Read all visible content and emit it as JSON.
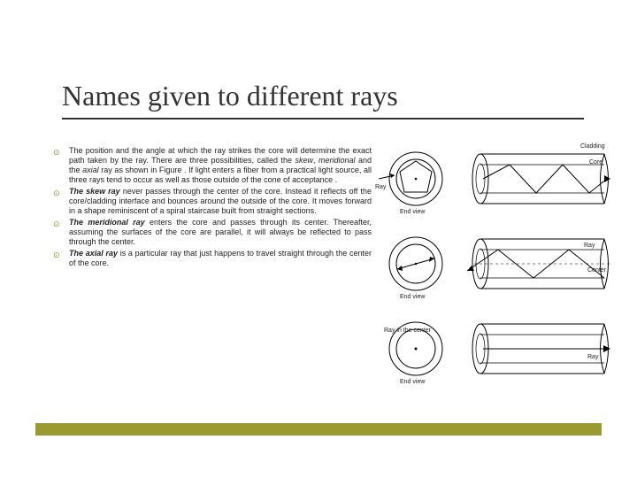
{
  "title": "Names given to different rays",
  "bullets": [
    {
      "html": "The position and the angle at which the ray strikes the core will determine the exact path taken by the ray. There are three possibilities, called the <span class='italic'>skew</span>, <span class='italic'>meridional</span> and the <span class='italic'>axial</span> ray as shown in Figure . If light enters a fiber from a practical light source, all three rays tend to occur as well as those outside of the cone of acceptance ."
    },
    {
      "html": "<span class='bold italic'>The skew ray</span> never passes through the center of the core. Instead it reflects off the core/cladding interface and bounces around the outside of the core. It moves forward in a shape reminiscent of a spiral staircase built from straight sections."
    },
    {
      "html": "<span class='bold italic'>The meridional ray</span> enters the core and passes through its center. Thereafter, assuming the surfaces of the core are parallel, it will always be reflected to pass through the center."
    },
    {
      "html": "<span class='bold italic'>The axial ray</span> is a particular ray that just happens to travel straight through the center of the core."
    }
  ],
  "labels": {
    "ray": "Ray",
    "end_view": "End view",
    "cladding": "Cladding",
    "core": "Core",
    "center": "Center",
    "ray_in_center": "Ray in the center"
  },
  "colors": {
    "accent": "#9a9a33",
    "rule": "#333333",
    "text": "#222222",
    "bullet": "#8a8a2a"
  }
}
